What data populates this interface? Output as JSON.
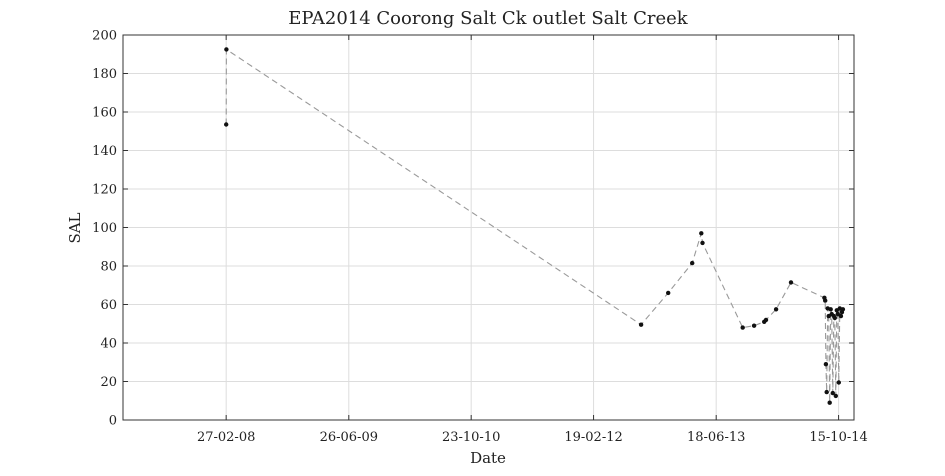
{
  "chart_data": {
    "type": "line",
    "title": "EPA2014 Coorong Salt Ck outlet Salt Creek",
    "xlabel": "Date",
    "ylabel": "SAL",
    "x_tick_labels": [
      "27-02-08",
      "26-06-09",
      "23-10-10",
      "19-02-12",
      "18-06-13",
      "15-10-14"
    ],
    "y_ticks": [
      0,
      20,
      40,
      60,
      80,
      100,
      120,
      140,
      160,
      180,
      200
    ],
    "xlim": [
      "2007-01-15",
      "2014-12-15"
    ],
    "ylim": [
      0,
      200
    ],
    "grid": true,
    "colors": {
      "line": "#9a9a9a",
      "marker": "#111111",
      "grid": "#dddddd",
      "axes": "#333333"
    },
    "series": [
      {
        "x": [
          "2008-02-27",
          "2008-02-28",
          "2012-08-25",
          "2012-12-10",
          "2013-03-15",
          "2013-04-20",
          "2013-04-25",
          "2013-10-01",
          "2013-11-15",
          "2013-12-25",
          "2014-01-01",
          "2014-02-10",
          "2014-04-10",
          "2014-08-20",
          "2014-08-23",
          "2014-08-26",
          "2014-08-29",
          "2014-09-02",
          "2014-09-06",
          "2014-09-10",
          "2014-09-14",
          "2014-09-18",
          "2014-09-22",
          "2014-09-26",
          "2014-09-30",
          "2014-10-04",
          "2014-10-08",
          "2014-10-12",
          "2014-10-16",
          "2014-10-20",
          "2014-10-24",
          "2014-10-28",
          "2014-11-01"
        ],
        "y": [
          153.5,
          192.5,
          49.5,
          66,
          81.5,
          97,
          92,
          48,
          49,
          51,
          52,
          57.5,
          71.5,
          63.5,
          62,
          29,
          14.5,
          58,
          54,
          9,
          57.5,
          55,
          14,
          54,
          53,
          12.5,
          57,
          55,
          19.5,
          58,
          54,
          56,
          57.5
        ]
      }
    ]
  }
}
